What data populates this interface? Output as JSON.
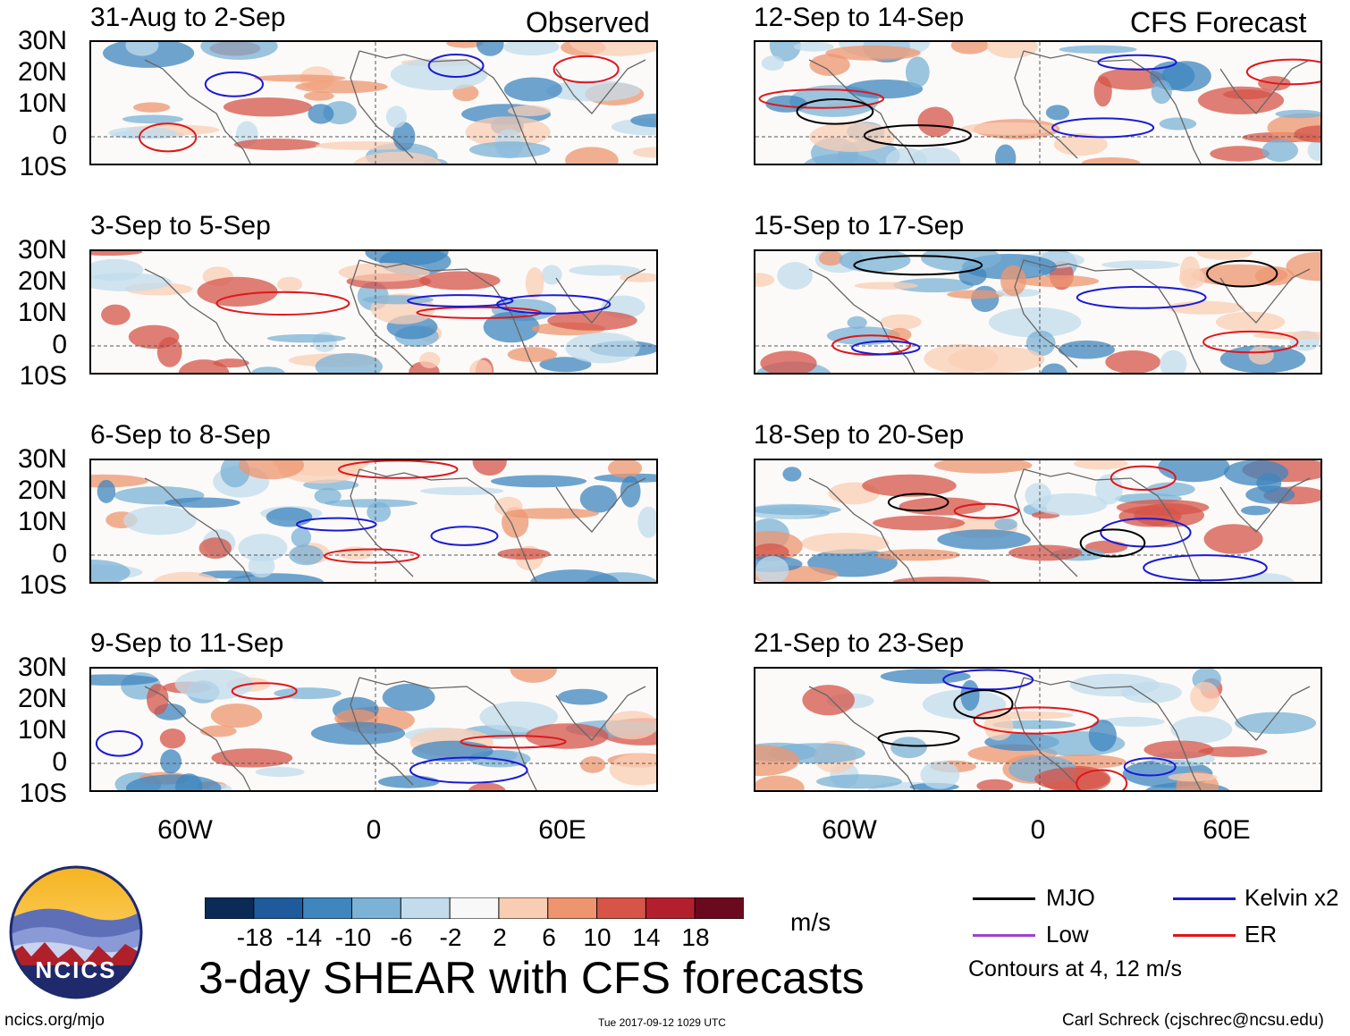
{
  "columns": {
    "left_tag": "Observed",
    "right_tag": "CFS Forecast"
  },
  "panels": [
    {
      "title": "31-Aug to 2-Sep"
    },
    {
      "title": "3-Sep to 5-Sep"
    },
    {
      "title": "6-Sep to 8-Sep"
    },
    {
      "title": "9-Sep to 11-Sep"
    },
    {
      "title": "12-Sep to 14-Sep"
    },
    {
      "title": "15-Sep to 17-Sep"
    },
    {
      "title": "18-Sep to 20-Sep"
    },
    {
      "title": "21-Sep to 23-Sep"
    }
  ],
  "lat_labels": [
    "30N",
    "20N",
    "10N",
    "0",
    "10S"
  ],
  "lon_labels": [
    "60W",
    "0",
    "60E"
  ],
  "colorbar": {
    "ticks": [
      "-18",
      "-14",
      "-10",
      "-6",
      "-2",
      "2",
      "6",
      "10",
      "14",
      "18"
    ],
    "colors": [
      "#0b2a55",
      "#1f5b9c",
      "#3f86bf",
      "#7bb2d6",
      "#c2dcec",
      "#f8f8f8",
      "#f9cdb4",
      "#ee9570",
      "#d65448",
      "#b41f2e",
      "#6b0a1e"
    ],
    "units": "m/s"
  },
  "legend": {
    "mjo": {
      "label": "MJO",
      "color": "#000000"
    },
    "kelvin": {
      "label": "Kelvin x2",
      "color": "#1a1ad6"
    },
    "low": {
      "label": "Low",
      "color": "#a040d0"
    },
    "er": {
      "label": "ER",
      "color": "#e0161b"
    },
    "contours_note": "Contours at 4, 12 m/s"
  },
  "title": "3-day SHEAR with CFS forecasts",
  "logo_text": "NCICS",
  "footer": {
    "url": "ncics.org/mjo",
    "timestamp": "Tue 2017-09-12 1029 UTC",
    "author": "Carl Schreck (cjschrec@ncsu.edu)"
  }
}
